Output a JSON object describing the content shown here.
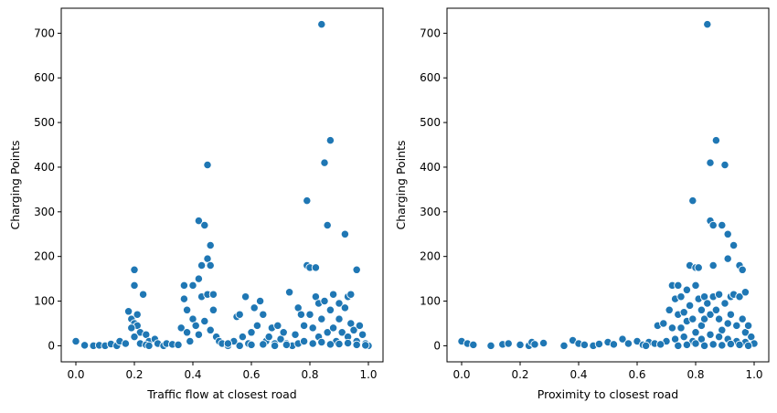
{
  "colors": {
    "marker": "#1f77b4",
    "marker_edge": "#ffffff",
    "axis": "#000000"
  },
  "chart_data": [
    {
      "type": "scatter",
      "xlabel": "Traffic flow at closest road",
      "ylabel": "Charging Points",
      "xlim": [
        -0.05,
        1.05
      ],
      "ylim": [
        -36,
        756
      ],
      "xticks": [
        0.0,
        0.2,
        0.4,
        0.6,
        0.8,
        1.0
      ],
      "xtick_labels": [
        "0.0",
        "0.2",
        "0.4",
        "0.6",
        "0.8",
        "1.0"
      ],
      "yticks": [
        0,
        100,
        200,
        300,
        400,
        500,
        600,
        700
      ],
      "ytick_labels": [
        "0",
        "100",
        "200",
        "300",
        "400",
        "500",
        "600",
        "700"
      ],
      "grid": false,
      "points": [
        [
          0.0,
          10
        ],
        [
          0.03,
          1
        ],
        [
          0.06,
          0
        ],
        [
          0.08,
          1
        ],
        [
          0.1,
          0
        ],
        [
          0.12,
          4
        ],
        [
          0.14,
          0
        ],
        [
          0.15,
          10
        ],
        [
          0.17,
          5
        ],
        [
          0.18,
          77
        ],
        [
          0.19,
          60
        ],
        [
          0.2,
          170
        ],
        [
          0.2,
          135
        ],
        [
          0.2,
          50
        ],
        [
          0.21,
          70
        ],
        [
          0.21,
          45
        ],
        [
          0.22,
          30
        ],
        [
          0.23,
          115
        ],
        [
          0.24,
          25
        ],
        [
          0.25,
          10
        ],
        [
          0.19,
          40
        ],
        [
          0.2,
          20
        ],
        [
          0.22,
          5
        ],
        [
          0.24,
          2
        ],
        [
          0.27,
          15
        ],
        [
          0.28,
          5
        ],
        [
          0.3,
          0
        ],
        [
          0.31,
          5
        ],
        [
          0.33,
          3
        ],
        [
          0.35,
          2
        ],
        [
          0.36,
          40
        ],
        [
          0.37,
          135
        ],
        [
          0.37,
          105
        ],
        [
          0.38,
          80
        ],
        [
          0.38,
          30
        ],
        [
          0.39,
          10
        ],
        [
          0.4,
          135
        ],
        [
          0.4,
          60
        ],
        [
          0.41,
          45
        ],
        [
          0.42,
          150
        ],
        [
          0.42,
          25
        ],
        [
          0.42,
          280
        ],
        [
          0.43,
          180
        ],
        [
          0.43,
          110
        ],
        [
          0.44,
          270
        ],
        [
          0.44,
          55
        ],
        [
          0.45,
          405
        ],
        [
          0.45,
          195
        ],
        [
          0.45,
          115
        ],
        [
          0.46,
          225
        ],
        [
          0.46,
          35
        ],
        [
          0.46,
          180
        ],
        [
          0.47,
          115
        ],
        [
          0.47,
          80
        ],
        [
          0.48,
          20
        ],
        [
          0.49,
          10
        ],
        [
          0.5,
          5
        ],
        [
          0.52,
          0
        ],
        [
          0.54,
          10
        ],
        [
          0.55,
          65
        ],
        [
          0.56,
          70
        ],
        [
          0.57,
          20
        ],
        [
          0.58,
          110
        ],
        [
          0.59,
          5
        ],
        [
          0.6,
          30
        ],
        [
          0.61,
          85
        ],
        [
          0.62,
          45
        ],
        [
          0.63,
          100
        ],
        [
          0.64,
          70
        ],
        [
          0.65,
          10
        ],
        [
          0.66,
          20
        ],
        [
          0.67,
          40
        ],
        [
          0.68,
          5
        ],
        [
          0.69,
          45
        ],
        [
          0.7,
          15
        ],
        [
          0.71,
          30
        ],
        [
          0.72,
          5
        ],
        [
          0.73,
          120
        ],
        [
          0.74,
          0
        ],
        [
          0.75,
          25
        ],
        [
          0.76,
          85
        ],
        [
          0.77,
          70
        ],
        [
          0.78,
          45
        ],
        [
          0.79,
          325
        ],
        [
          0.79,
          180
        ],
        [
          0.8,
          175
        ],
        [
          0.8,
          70
        ],
        [
          0.81,
          40
        ],
        [
          0.82,
          110
        ],
        [
          0.82,
          175
        ],
        [
          0.83,
          95
        ],
        [
          0.83,
          20
        ],
        [
          0.84,
          720
        ],
        [
          0.84,
          60
        ],
        [
          0.85,
          100
        ],
        [
          0.85,
          410
        ],
        [
          0.86,
          270
        ],
        [
          0.86,
          30
        ],
        [
          0.87,
          460
        ],
        [
          0.87,
          80
        ],
        [
          0.88,
          115
        ],
        [
          0.88,
          40
        ],
        [
          0.89,
          10
        ],
        [
          0.9,
          95
        ],
        [
          0.9,
          60
        ],
        [
          0.91,
          30
        ],
        [
          0.92,
          250
        ],
        [
          0.92,
          85
        ],
        [
          0.93,
          110
        ],
        [
          0.93,
          20
        ],
        [
          0.94,
          115
        ],
        [
          0.94,
          50
        ],
        [
          0.95,
          35
        ],
        [
          0.96,
          170
        ],
        [
          0.96,
          10
        ],
        [
          0.97,
          45
        ],
        [
          0.98,
          25
        ],
        [
          0.99,
          5
        ],
        [
          1.0,
          0
        ],
        [
          0.25,
          0
        ],
        [
          0.52,
          5
        ],
        [
          0.56,
          0
        ],
        [
          0.6,
          2
        ],
        [
          0.64,
          3
        ],
        [
          0.68,
          0
        ],
        [
          0.72,
          2
        ],
        [
          0.76,
          5
        ],
        [
          0.78,
          10
        ],
        [
          0.81,
          5
        ],
        [
          0.84,
          8
        ],
        [
          0.87,
          3
        ],
        [
          0.9,
          4
        ],
        [
          0.93,
          6
        ],
        [
          0.96,
          2
        ],
        [
          0.99,
          1
        ]
      ]
    },
    {
      "type": "scatter",
      "xlabel": "Proximity to closest road",
      "ylabel": "Charging Points",
      "xlim": [
        -0.05,
        1.05
      ],
      "ylim": [
        -36,
        756
      ],
      "xticks": [
        0.0,
        0.2,
        0.4,
        0.6,
        0.8,
        1.0
      ],
      "xtick_labels": [
        "0.0",
        "0.2",
        "0.4",
        "0.6",
        "0.8",
        "1.0"
      ],
      "yticks": [
        0,
        100,
        200,
        300,
        400,
        500,
        600,
        700
      ],
      "ytick_labels": [
        "0",
        "100",
        "200",
        "300",
        "400",
        "500",
        "600",
        "700"
      ],
      "grid": false,
      "points": [
        [
          0.0,
          10
        ],
        [
          0.02,
          5
        ],
        [
          0.04,
          2
        ],
        [
          0.1,
          0
        ],
        [
          0.14,
          3
        ],
        [
          0.16,
          5
        ],
        [
          0.2,
          2
        ],
        [
          0.23,
          0
        ],
        [
          0.24,
          8
        ],
        [
          0.25,
          3
        ],
        [
          0.28,
          6
        ],
        [
          0.35,
          0
        ],
        [
          0.38,
          12
        ],
        [
          0.4,
          5
        ],
        [
          0.42,
          2
        ],
        [
          0.45,
          0
        ],
        [
          0.47,
          4
        ],
        [
          0.5,
          8
        ],
        [
          0.52,
          3
        ],
        [
          0.55,
          15
        ],
        [
          0.57,
          5
        ],
        [
          0.6,
          10
        ],
        [
          0.62,
          2
        ],
        [
          0.64,
          8
        ],
        [
          0.66,
          5
        ],
        [
          0.67,
          45
        ],
        [
          0.69,
          50
        ],
        [
          0.7,
          10
        ],
        [
          0.71,
          80
        ],
        [
          0.72,
          135
        ],
        [
          0.72,
          40
        ],
        [
          0.73,
          105
        ],
        [
          0.74,
          135
        ],
        [
          0.74,
          70
        ],
        [
          0.75,
          110
        ],
        [
          0.75,
          40
        ],
        [
          0.76,
          75
        ],
        [
          0.77,
          125
        ],
        [
          0.77,
          55
        ],
        [
          0.78,
          180
        ],
        [
          0.78,
          90
        ],
        [
          0.79,
          325
        ],
        [
          0.79,
          60
        ],
        [
          0.8,
          175
        ],
        [
          0.8,
          135
        ],
        [
          0.8,
          30
        ],
        [
          0.81,
          175
        ],
        [
          0.81,
          105
        ],
        [
          0.82,
          80
        ],
        [
          0.82,
          45
        ],
        [
          0.83,
          110
        ],
        [
          0.83,
          60
        ],
        [
          0.84,
          720
        ],
        [
          0.84,
          95
        ],
        [
          0.85,
          410
        ],
        [
          0.85,
          280
        ],
        [
          0.85,
          70
        ],
        [
          0.86,
          270
        ],
        [
          0.86,
          180
        ],
        [
          0.86,
          110
        ],
        [
          0.87,
          460
        ],
        [
          0.87,
          80
        ],
        [
          0.88,
          115
        ],
        [
          0.88,
          60
        ],
        [
          0.89,
          270
        ],
        [
          0.89,
          35
        ],
        [
          0.9,
          405
        ],
        [
          0.9,
          95
        ],
        [
          0.91,
          250
        ],
        [
          0.91,
          195
        ],
        [
          0.91,
          50
        ],
        [
          0.92,
          110
        ],
        [
          0.92,
          70
        ],
        [
          0.93,
          225
        ],
        [
          0.93,
          115
        ],
        [
          0.94,
          45
        ],
        [
          0.95,
          180
        ],
        [
          0.95,
          110
        ],
        [
          0.96,
          170
        ],
        [
          0.96,
          60
        ],
        [
          0.97,
          120
        ],
        [
          0.97,
          30
        ],
        [
          0.98,
          45
        ],
        [
          0.99,
          20
        ],
        [
          1.0,
          5
        ],
        [
          0.73,
          15
        ],
        [
          0.76,
          20
        ],
        [
          0.79,
          10
        ],
        [
          0.82,
          15
        ],
        [
          0.85,
          25
        ],
        [
          0.88,
          20
        ],
        [
          0.91,
          15
        ],
        [
          0.94,
          10
        ],
        [
          0.97,
          8
        ],
        [
          0.74,
          0
        ],
        [
          0.77,
          2
        ],
        [
          0.8,
          5
        ],
        [
          0.83,
          0
        ],
        [
          0.86,
          3
        ],
        [
          0.89,
          1
        ],
        [
          0.92,
          4
        ],
        [
          0.95,
          2
        ],
        [
          0.98,
          0
        ],
        [
          0.68,
          3
        ],
        [
          0.63,
          0
        ]
      ]
    }
  ]
}
